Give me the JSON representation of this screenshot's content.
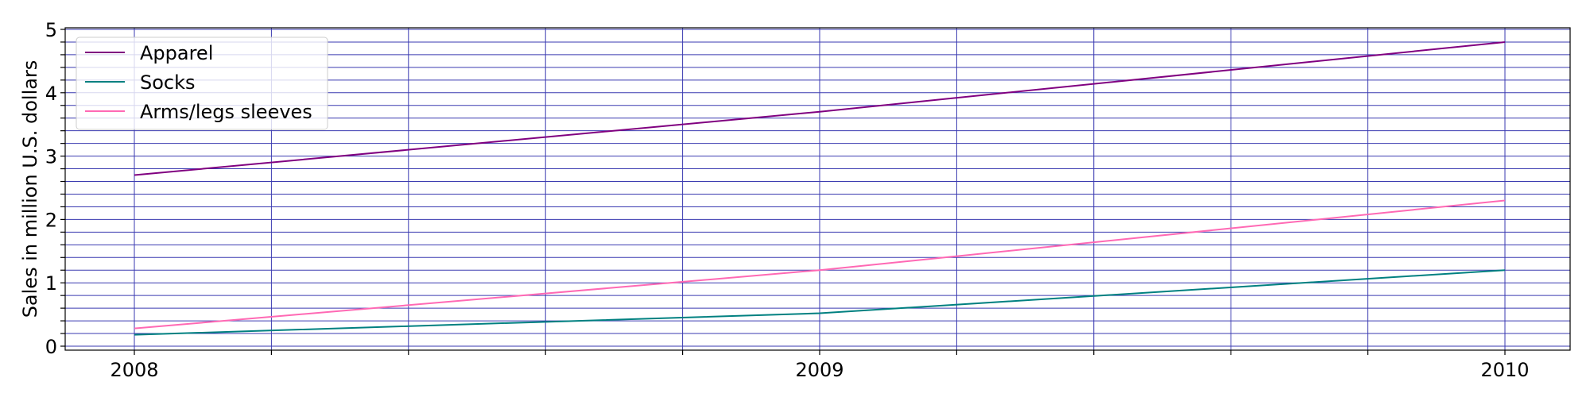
{
  "chart_data": {
    "type": "line",
    "title": "",
    "xlabel": "",
    "ylabel": "Sales in million U.S. dollars",
    "x": [
      2008,
      2009,
      2010
    ],
    "xticks": [
      "2008",
      "2009",
      "2010"
    ],
    "yticks": [
      "0",
      "1",
      "2",
      "3",
      "4",
      "5"
    ],
    "ylim": [
      0,
      5
    ],
    "xlim": [
      2007.9,
      2010.1
    ],
    "grid": true,
    "legend_position": "top-left",
    "series": [
      {
        "name": "Apparel",
        "color": "#800080",
        "values": [
          2.7,
          3.7,
          4.8
        ]
      },
      {
        "name": "Socks",
        "color": "#008080",
        "values": [
          0.18,
          0.52,
          1.2
        ]
      },
      {
        "name": "Arms/legs sleeves",
        "color": "#ff69b4",
        "values": [
          0.28,
          1.2,
          2.3
        ]
      }
    ]
  }
}
